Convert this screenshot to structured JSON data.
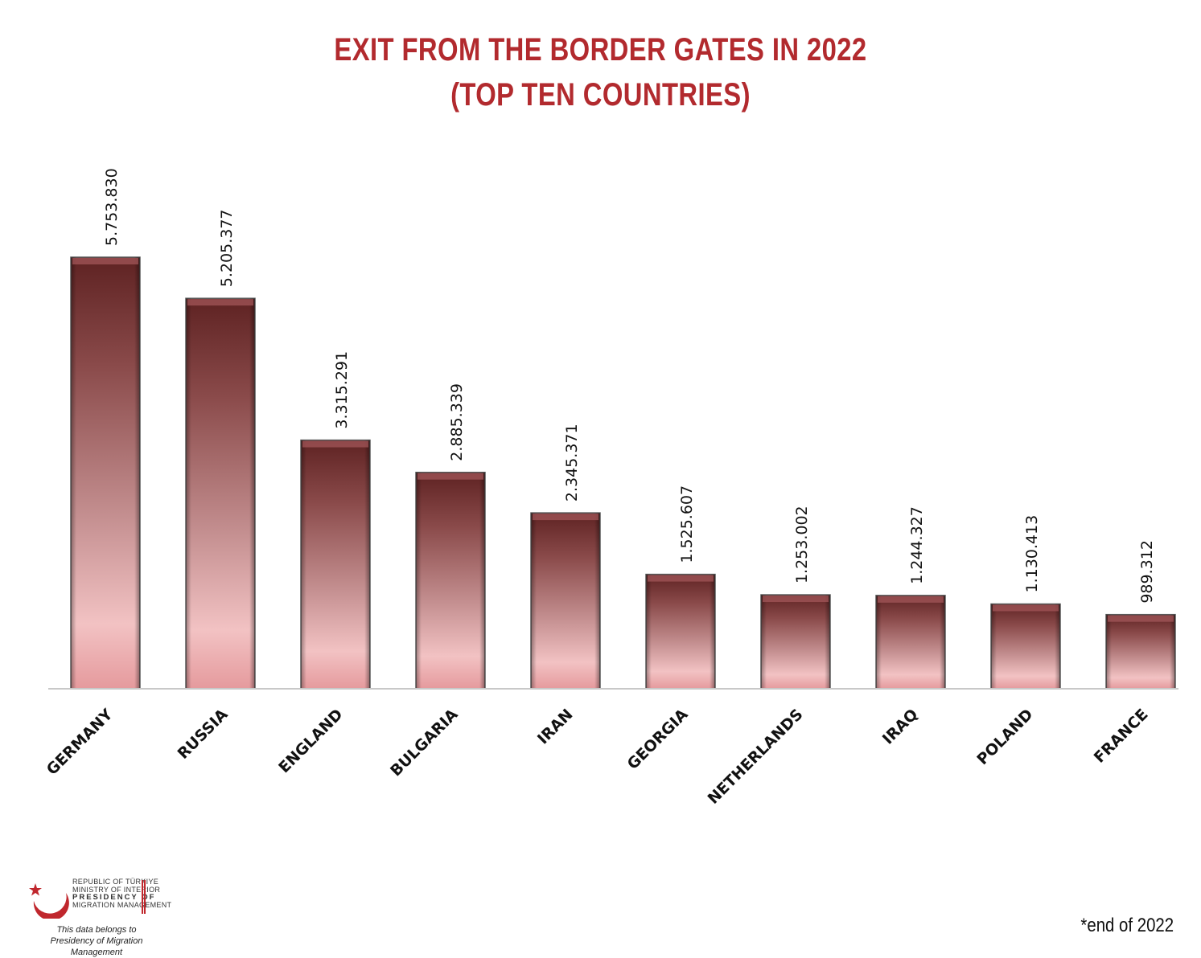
{
  "chart_data": {
    "type": "bar",
    "title": "EXIT FROM THE BORDER GATES IN 2022",
    "subtitle": "(TOP TEN COUNTRIES)",
    "categories": [
      "GERMANY",
      "RUSSIA",
      "ENGLAND",
      "BULGARIA",
      "IRAN",
      "GEORGIA",
      "NETHERLANDS",
      "IRAQ",
      "POLAND",
      "FRANCE"
    ],
    "values": [
      5753830,
      5205377,
      3315291,
      2885339,
      2345371,
      1525607,
      1253002,
      1244327,
      1130413,
      989312
    ],
    "value_labels": [
      "5.753.830",
      "5.205.377",
      "3.315.291",
      "2.885.339",
      "2.345.371",
      "1.525.607",
      "1.253.002",
      "1.244.327",
      "1.130.413",
      "989.312"
    ],
    "xlabel": "",
    "ylabel": "",
    "ylim": [
      0,
      5753830
    ],
    "grid": false,
    "colors": {
      "bar_top": "#6b2626",
      "bar_bottom": "#e8a0a3",
      "title": "#b22a2e"
    }
  },
  "footer": {
    "logo_lines": [
      "REPUBLIC OF TÜRKIYE",
      "MINISTRY OF INTERIOR",
      "PRESIDENCY OF",
      "MIGRATION MANAGEMENT"
    ],
    "logo_icon": "crescent-star-icon",
    "credit_line1": "This data belongs to",
    "credit_line2": "Presidency of Migration Management",
    "note": "*end of 2022"
  }
}
